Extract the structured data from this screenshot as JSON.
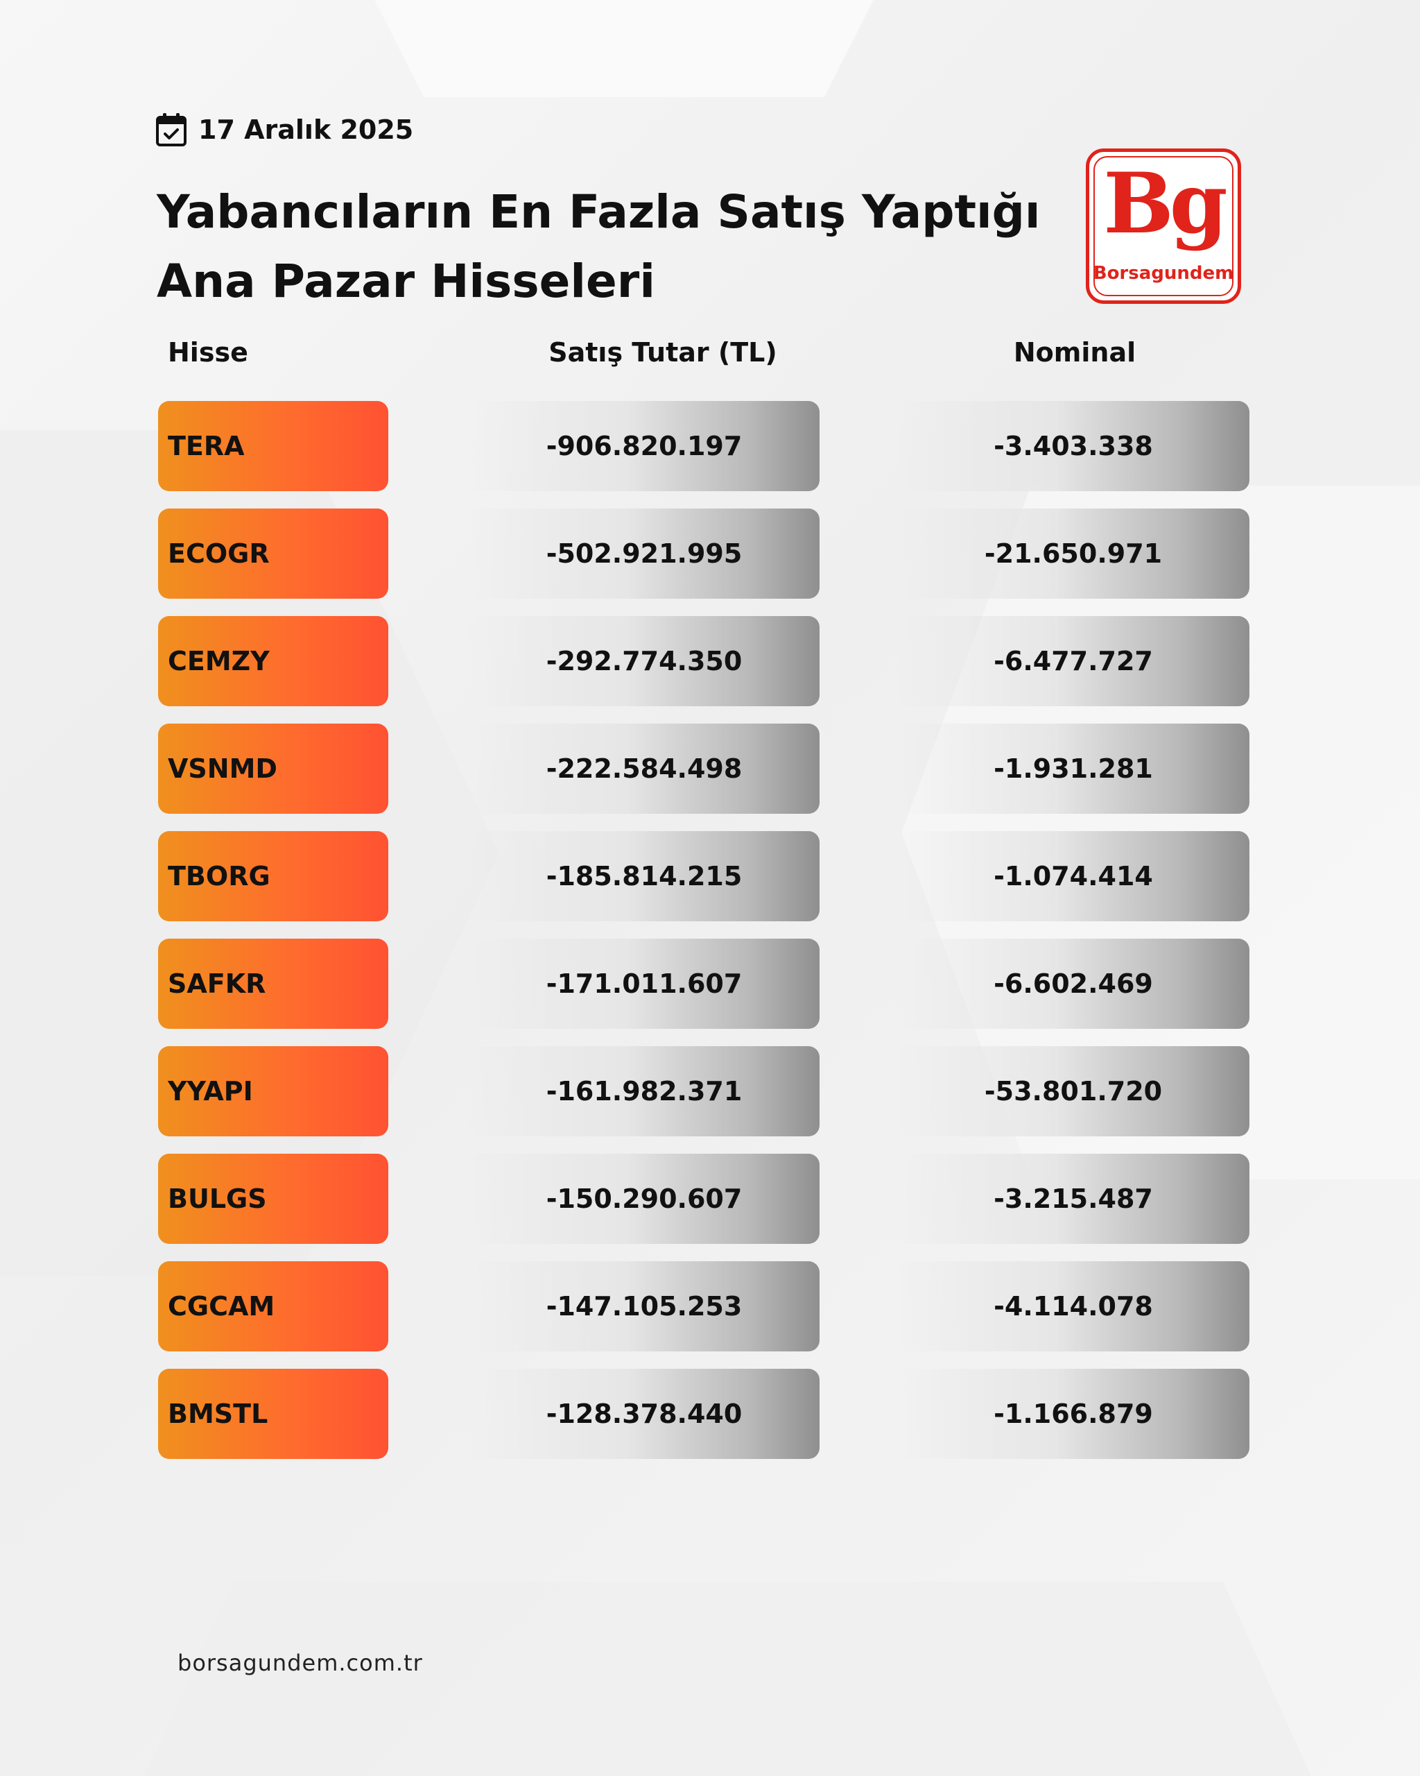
{
  "date": "17 Aralık 2025",
  "title_line1": "Yabancıların En Fazla Satış Yaptığı",
  "title_line2": "Ana Pazar Hisseleri",
  "logo": {
    "mark": "Bg",
    "wordmark": "Borsagundem",
    "color": "#e0231b"
  },
  "columns": {
    "hisse": "Hisse",
    "satis": "Satış Tutar (TL)",
    "nominal": "Nominal"
  },
  "rows": [
    {
      "hisse": "TERA",
      "satis": "-906.820.197",
      "nominal": "-3.403.338"
    },
    {
      "hisse": "ECOGR",
      "satis": "-502.921.995",
      "nominal": "-21.650.971"
    },
    {
      "hisse": "CEMZY",
      "satis": "-292.774.350",
      "nominal": "-6.477.727"
    },
    {
      "hisse": "VSNMD",
      "satis": "-222.584.498",
      "nominal": "-1.931.281"
    },
    {
      "hisse": "TBORG",
      "satis": "-185.814.215",
      "nominal": "-1.074.414"
    },
    {
      "hisse": "SAFKR",
      "satis": "-171.011.607",
      "nominal": "-6.602.469"
    },
    {
      "hisse": "YYAPI",
      "satis": "-161.982.371",
      "nominal": "-53.801.720"
    },
    {
      "hisse": "BULGS",
      "satis": "-150.290.607",
      "nominal": "-3.215.487"
    },
    {
      "hisse": "CGCAM",
      "satis": "-147.105.253",
      "nominal": "-4.114.078"
    },
    {
      "hisse": "BMSTL",
      "satis": "-128.378.440",
      "nominal": "-1.166.879"
    }
  ],
  "footer": "borsagundem.com.tr",
  "icons": {
    "date": "calendar-check-icon"
  }
}
